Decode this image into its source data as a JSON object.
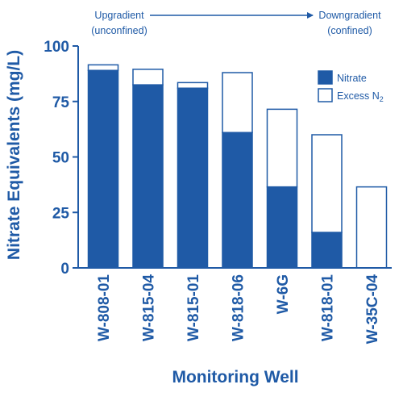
{
  "chart_data": {
    "type": "bar",
    "stacked": true,
    "title": "",
    "xlabel": "Monitoring Well",
    "ylabel": "Nitrate Equivalents (mg/L)",
    "ylim": [
      0,
      100
    ],
    "yticks": [
      0,
      25,
      50,
      75,
      100
    ],
    "grid": false,
    "legend_position": "top-right",
    "categories": [
      "W-808-01",
      "W-815-04",
      "W-815-01",
      "W-818-06",
      "W-6G",
      "W-818-01",
      "W-35C-04"
    ],
    "series": [
      {
        "name": "Nitrate",
        "values": [
          89,
          82.5,
          81,
          61,
          36.5,
          16,
          0
        ],
        "color": "#1f5aa6",
        "fill": "solid"
      },
      {
        "name": "Excess N2",
        "values": [
          2.5,
          7,
          2.5,
          27,
          35,
          44,
          36.5
        ],
        "color": "#1f5aa6",
        "fill": "outline"
      }
    ],
    "annotations": {
      "left_line1": "Upgradient",
      "left_line2": "(unconfined)",
      "right_line1": "Downgradient",
      "right_line2": "(confined)"
    },
    "legend_labels": {
      "nitrate": "Nitrate",
      "excess_main": "Excess N",
      "excess_sub": "2"
    }
  }
}
